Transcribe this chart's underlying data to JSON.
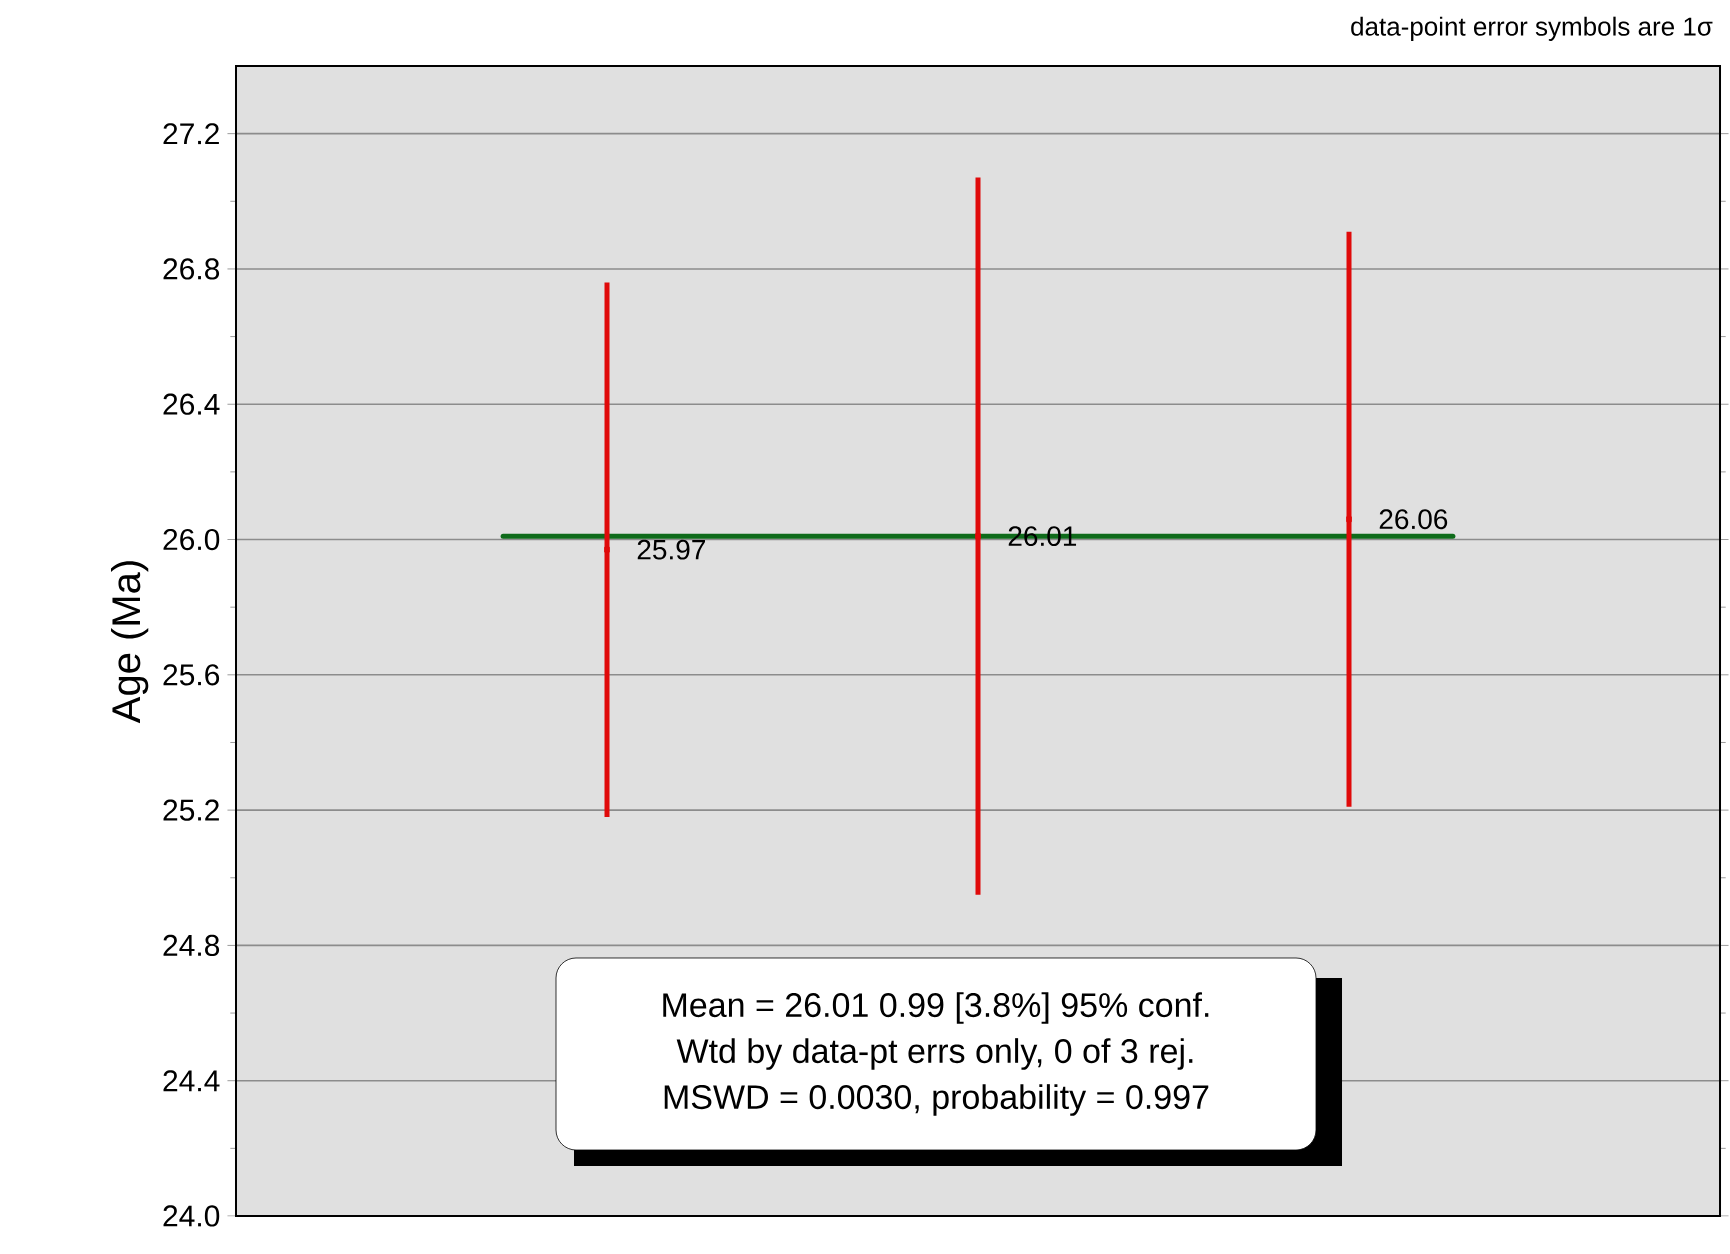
{
  "chart_data": {
    "type": "scatter",
    "ylabel": "Age (Ma)",
    "categories": [
      null,
      null,
      null
    ],
    "series": [
      {
        "color": "#e00a0a",
        "values": [
          25.97,
          26.01,
          26.06
        ],
        "errors": [
          0.79,
          1.06,
          0.85
        ]
      }
    ],
    "data_labels": true,
    "marker": "square",
    "ylim": [
      24.0,
      27.4
    ],
    "yticks": [
      {
        "value": 24.0,
        "label": "24.0"
      },
      {
        "value": 24.4,
        "label": "24.4"
      },
      {
        "value": 24.8,
        "label": "24.8"
      },
      {
        "value": 25.2,
        "label": "25.2"
      },
      {
        "value": 25.6,
        "label": "25.6"
      },
      {
        "value": 26.0,
        "label": "26.0"
      },
      {
        "value": 26.4,
        "label": "26.4"
      },
      {
        "value": 26.8,
        "label": "26.8"
      },
      {
        "value": 27.2,
        "label": "27.2"
      }
    ],
    "ref_lines": [
      {
        "axis": "y",
        "value": 26.01,
        "color": "#0e6b1a"
      }
    ],
    "grid": "y",
    "tick_labels": "y",
    "annotations": [
      "data-point error symbols are 1σ",
      "Mean = 26.01  0.99  [3.8%]  95% conf.",
      "Wtd by data-pt errs only, 0 of 3 rej.",
      "MSWD = 0.0030, probability = 0.997"
    ]
  }
}
